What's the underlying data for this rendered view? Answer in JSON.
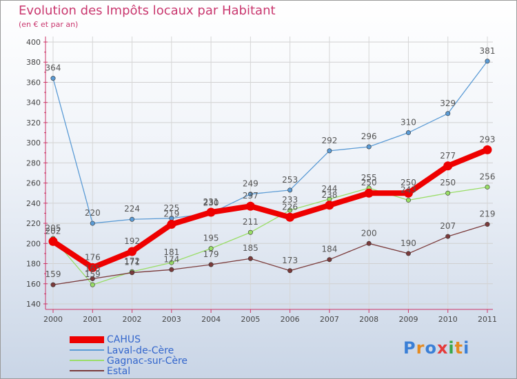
{
  "header": {
    "title": "Evolution des Impôts locaux par Habitant",
    "subtitle": "(en € et par an)"
  },
  "logo": {
    "text": "Proxiti"
  },
  "chart_data": {
    "type": "line",
    "title": "Evolution des Impôts locaux par Habitant",
    "subtitle": "(en € et par an)",
    "xlabel": "",
    "ylabel": "",
    "ylim": [
      140,
      400
    ],
    "yticks": [
      140,
      160,
      180,
      200,
      220,
      240,
      260,
      280,
      300,
      320,
      340,
      360,
      380,
      400
    ],
    "grid": true,
    "legend_position": "bottom-left",
    "categories": [
      "2000",
      "2001",
      "2002",
      "2003",
      "2004",
      "2005",
      "2006",
      "2007",
      "2008",
      "2009",
      "2010",
      "2011"
    ],
    "series": [
      {
        "name": "Laval-de-Cère",
        "color": "#5b9bd5",
        "emphasis": false,
        "values": [
          364,
          220,
          224,
          225,
          230,
          249,
          253,
          292,
          296,
          310,
          329,
          381
        ]
      },
      {
        "name": "Gagnac-sur-Cère",
        "color": "#99dd66",
        "emphasis": false,
        "values": [
          205,
          159,
          172,
          181,
          195,
          211,
          233,
          244,
          255,
          243,
          250,
          256
        ]
      },
      {
        "name": "Estal",
        "color": "#7a3a3a",
        "emphasis": false,
        "values": [
          159,
          165,
          171,
          174,
          179,
          185,
          173,
          184,
          200,
          190,
          207,
          219
        ]
      },
      {
        "name": "CAHUS",
        "color": "#ee0000",
        "emphasis": true,
        "values": [
          202,
          176,
          192,
          219,
          231,
          237,
          226,
          238,
          250,
          250,
          277,
          293
        ]
      }
    ],
    "legend": [
      "CAHUS",
      "Laval-de-Cère",
      "Gagnac-sur-Cère",
      "Estal"
    ]
  }
}
